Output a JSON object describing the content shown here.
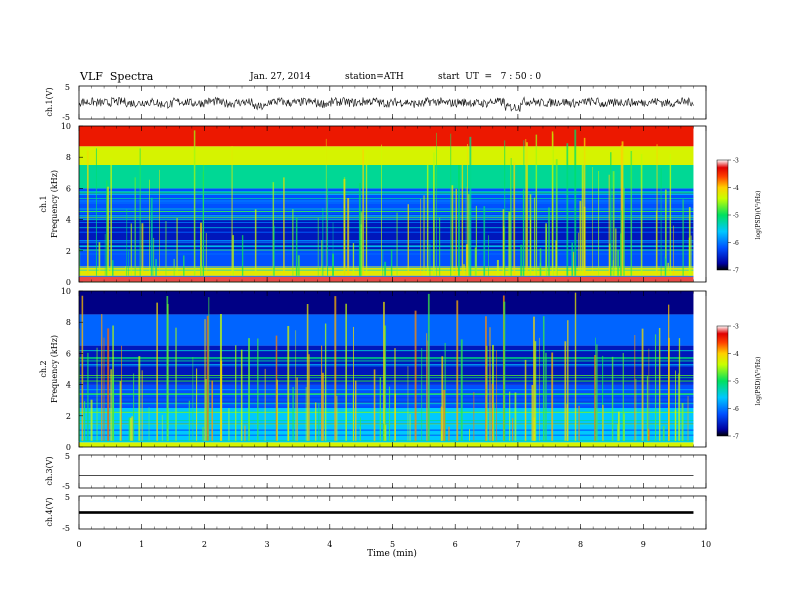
{
  "header": {
    "title": "VLF  Spectra",
    "date": "Jan. 27, 2014",
    "station": "station=ATH",
    "start_ut": "start  UT  =   7 : 50 : 0"
  },
  "chart_data": [
    {
      "type": "line",
      "panel": "ch1-waveform",
      "ylabel": "ch.1(V)",
      "ylim": [
        -5,
        5
      ],
      "yticks": [
        "5",
        "-5"
      ],
      "x_range_min": [
        0,
        9.8
      ],
      "description_level": "noisy waveform centred near 0 V with amplitude about ±1.5 V and spikes to about -3 V",
      "series": [
        {
          "values": [
            0.3,
            -0.2,
            0.5,
            -0.4,
            0.2,
            -1.0,
            0.4,
            -0.3,
            0.6,
            -0.5,
            0.1,
            -2.6,
            0.5,
            -0.2,
            0.3,
            -0.6,
            0.4,
            -0.1,
            0.7,
            -0.4,
            0.2,
            -0.8,
            0.5,
            -0.3,
            0.1,
            -0.5,
            0.4,
            -2.8,
            0.6,
            -0.2,
            0.3,
            -0.4,
            0.5,
            -0.7,
            0.2,
            -0.1,
            0.6,
            -0.3,
            0.4,
            -0.5
          ]
        }
      ]
    },
    {
      "type": "heatmap",
      "panel": "ch1-spectrogram",
      "ylabel": "Frequency  (kHz)",
      "channel_label": "ch.1",
      "ylim": [
        0,
        10
      ],
      "yticks": [
        "0",
        "2",
        "4",
        "6",
        "8",
        "10"
      ],
      "colorbar": {
        "label": "log(PSD)(V²/Hz)",
        "range": [
          -7,
          -3
        ],
        "ticks": [
          "-3",
          "-4",
          "-5",
          "-6",
          "-7"
        ]
      },
      "bands": [
        {
          "f0": 0.0,
          "f1": 0.4,
          "level": -3.2
        },
        {
          "f0": 0.4,
          "f1": 1.0,
          "level": -4.2
        },
        {
          "f0": 1.0,
          "f1": 2.0,
          "level": -6.2
        },
        {
          "f0": 2.0,
          "f1": 4.0,
          "level": -6.6
        },
        {
          "f0": 4.0,
          "f1": 6.0,
          "level": -6.2
        },
        {
          "f0": 6.0,
          "f1": 7.5,
          "level": -5.2
        },
        {
          "f0": 7.5,
          "f1": 8.7,
          "level": -4.3
        },
        {
          "f0": 8.7,
          "f1": 10.0,
          "level": -3.4
        }
      ]
    },
    {
      "type": "heatmap",
      "panel": "ch2-spectrogram",
      "ylabel": "Frequency  (kHz)",
      "channel_label": "ch.2",
      "ylim": [
        0,
        10
      ],
      "yticks": [
        "0",
        "2",
        "4",
        "6",
        "8",
        "10"
      ],
      "colorbar": {
        "label": "log(PSD)(V²/Hz)",
        "range": [
          -7,
          -3
        ],
        "ticks": [
          "-3",
          "-4",
          "-5",
          "-6",
          "-7"
        ]
      },
      "bands": [
        {
          "f0": 0.0,
          "f1": 0.3,
          "level": -4.3
        },
        {
          "f0": 0.3,
          "f1": 2.5,
          "level": -5.6
        },
        {
          "f0": 2.5,
          "f1": 4.0,
          "level": -6.2
        },
        {
          "f0": 4.0,
          "f1": 6.5,
          "level": -6.6
        },
        {
          "f0": 6.5,
          "f1": 8.5,
          "level": -6.1
        },
        {
          "f0": 8.5,
          "f1": 10.0,
          "level": -6.8
        }
      ]
    },
    {
      "type": "line",
      "panel": "ch3-waveform",
      "ylabel": "ch.3(V)",
      "ylim": [
        -5,
        5
      ],
      "yticks": [
        "5",
        "-5"
      ],
      "series": [
        {
          "values": [
            -1.2,
            -1.2,
            -1.2,
            -1.2,
            -1.2,
            -1.2,
            -1.2,
            -1.2,
            -1.2,
            -1.2
          ]
        }
      ]
    },
    {
      "type": "line",
      "panel": "ch4-waveform",
      "ylabel": "ch.4(V)",
      "ylim": [
        -5,
        5
      ],
      "yticks": [
        "5",
        "-5"
      ],
      "series": [
        {
          "values": [
            0.4,
            -0.4,
            0.4,
            -0.4,
            0.4,
            -0.4,
            0.4,
            -0.4,
            0.4,
            -0.4
          ]
        }
      ]
    }
  ],
  "x_axis": {
    "label": "Time  (min)",
    "range": [
      0,
      10
    ],
    "ticks": [
      "0",
      "1",
      "2",
      "3",
      "4",
      "5",
      "6",
      "7",
      "8",
      "9",
      "10"
    ],
    "data_end": 9.8
  }
}
